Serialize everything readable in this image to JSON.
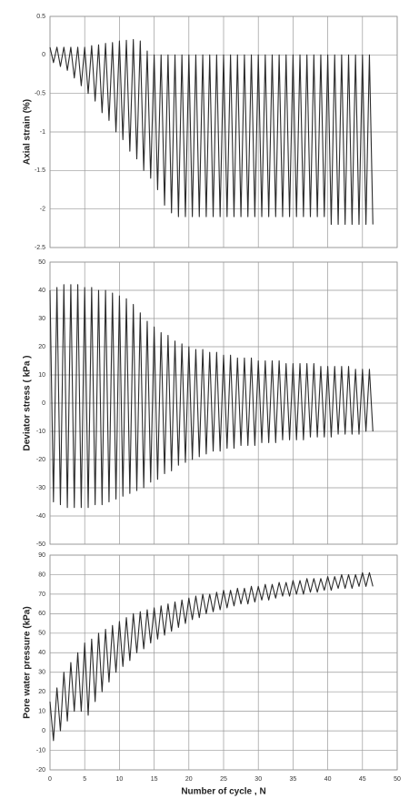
{
  "chart_data": [
    {
      "type": "line",
      "y_label": "Axial  strain (%)",
      "color": "#2b2b2b",
      "grid": true,
      "show_xtick_labels": false,
      "xlim": [
        0,
        50
      ],
      "xticks": [
        0,
        5,
        10,
        15,
        20,
        25,
        30,
        35,
        40,
        45,
        50
      ],
      "ylim": [
        -2.5,
        0.5
      ],
      "yticks": [
        -2.5,
        -2,
        -1.5,
        -1,
        -0.5,
        0,
        0.5
      ],
      "x": [
        0,
        0.5,
        1,
        1.5,
        2,
        2.5,
        3,
        3.5,
        4,
        4.5,
        5,
        5.5,
        6,
        6.5,
        7,
        7.5,
        8,
        8.5,
        9,
        9.5,
        10,
        10.5,
        11,
        11.5,
        12,
        12.5,
        13,
        13.5,
        14,
        14.5,
        15,
        15.5,
        16,
        16.5,
        17,
        17.5,
        18,
        18.5,
        19,
        19.5,
        20,
        20.5,
        21,
        21.5,
        22,
        22.5,
        23,
        23.5,
        24,
        24.5,
        25,
        25.5,
        26,
        26.5,
        27,
        27.5,
        28,
        28.5,
        29,
        29.5,
        30,
        30.5,
        31,
        31.5,
        32,
        32.5,
        33,
        33.5,
        34,
        34.5,
        35,
        35.5,
        36,
        36.5,
        37,
        37.5,
        38,
        38.5,
        39,
        39.5,
        40,
        40.5,
        41,
        41.5,
        42,
        42.5,
        43,
        43.5,
        44,
        44.5,
        45,
        45.5,
        46,
        46.5
      ],
      "values": [
        0.1,
        -0.1,
        0.1,
        -0.15,
        0.1,
        -0.2,
        0.1,
        -0.3,
        0.1,
        -0.4,
        0.1,
        -0.5,
        0.12,
        -0.6,
        0.13,
        -0.75,
        0.15,
        -0.85,
        0.16,
        -1,
        0.18,
        -1.1,
        0.19,
        -1.25,
        0.2,
        -1.35,
        0.18,
        -1.5,
        0.05,
        -1.6,
        0,
        -1.75,
        0,
        -1.95,
        0,
        -2.05,
        0,
        -2.1,
        0,
        -2.1,
        0,
        -2.1,
        0,
        -2.1,
        0,
        -2.1,
        0,
        -2.1,
        0,
        -2.1,
        0,
        -2.1,
        0,
        -2.1,
        0,
        -2.1,
        0,
        -2.1,
        0,
        -2.1,
        0,
        -2.1,
        0,
        -2.1,
        0,
        -2.1,
        0,
        -2.1,
        0,
        -2.1,
        0,
        -2.1,
        0,
        -2.1,
        0,
        -2.1,
        0,
        -2.1,
        0,
        -2.1,
        0,
        -2.2,
        0,
        -2.2,
        0,
        -2.2,
        0,
        -2.2,
        0,
        -2.2,
        0,
        -2.2,
        0,
        -2.2
      ]
    },
    {
      "type": "line",
      "y_label": "Deviator stress ( kPa )",
      "color": "#2b2b2b",
      "grid": true,
      "show_xtick_labels": false,
      "xlim": [
        0,
        50
      ],
      "xticks": [
        0,
        5,
        10,
        15,
        20,
        25,
        30,
        35,
        40,
        45,
        50
      ],
      "ylim": [
        -50,
        50
      ],
      "yticks": [
        -50,
        -40,
        -30,
        -20,
        -10,
        0,
        10,
        20,
        30,
        40,
        50
      ],
      "x": [
        0,
        0.5,
        1,
        1.5,
        2,
        2.5,
        3,
        3.5,
        4,
        4.5,
        5,
        5.5,
        6,
        6.5,
        7,
        7.5,
        8,
        8.5,
        9,
        9.5,
        10,
        10.5,
        11,
        11.5,
        12,
        12.5,
        13,
        13.5,
        14,
        14.5,
        15,
        15.5,
        16,
        16.5,
        17,
        17.5,
        18,
        18.5,
        19,
        19.5,
        20,
        20.5,
        21,
        21.5,
        22,
        22.5,
        23,
        23.5,
        24,
        24.5,
        25,
        25.5,
        26,
        26.5,
        27,
        27.5,
        28,
        28.5,
        29,
        29.5,
        30,
        30.5,
        31,
        31.5,
        32,
        32.5,
        33,
        33.5,
        34,
        34.5,
        35,
        35.5,
        36,
        36.5,
        37,
        37.5,
        38,
        38.5,
        39,
        39.5,
        40,
        40.5,
        41,
        41.5,
        42,
        42.5,
        43,
        43.5,
        44,
        44.5,
        45,
        45.5,
        46,
        46.5
      ],
      "values": [
        40,
        -35,
        41,
        -36,
        42,
        -37,
        42,
        -37,
        42,
        -37,
        41,
        -37,
        41,
        -36,
        40,
        -36,
        40,
        -35,
        39,
        -34,
        38,
        -33,
        37,
        -32,
        35,
        -31,
        32,
        -30,
        29,
        -28,
        27,
        -27,
        25,
        -25,
        24,
        -24,
        22,
        -22,
        21,
        -21,
        20,
        -20,
        19,
        -19,
        19,
        -18,
        18,
        -17,
        18,
        -17,
        17,
        -16,
        17,
        -16,
        16,
        -15,
        16,
        -15,
        16,
        -15,
        15,
        -14,
        15,
        -14,
        15,
        -14,
        15,
        -13,
        14,
        -13,
        14,
        -13,
        14,
        -13,
        14,
        -12,
        14,
        -12,
        13,
        -12,
        13,
        -12,
        13,
        -11,
        13,
        -11,
        13,
        -11,
        12,
        -11,
        12,
        -10,
        12,
        -10
      ]
    },
    {
      "type": "line",
      "y_label": "Pore water pressure (kPa)",
      "x_label": "Number of cycle , N",
      "color": "#2b2b2b",
      "grid": true,
      "show_xtick_labels": true,
      "xlim": [
        0,
        50
      ],
      "xticks": [
        0,
        5,
        10,
        15,
        20,
        25,
        30,
        35,
        40,
        45,
        50
      ],
      "ylim": [
        -20,
        90
      ],
      "yticks": [
        -20,
        -10,
        0,
        10,
        20,
        30,
        40,
        50,
        60,
        70,
        80,
        90
      ],
      "x": [
        0,
        0.5,
        1,
        1.5,
        2,
        2.5,
        3,
        3.5,
        4,
        4.5,
        5,
        5.5,
        6,
        6.5,
        7,
        7.5,
        8,
        8.5,
        9,
        9.5,
        10,
        10.5,
        11,
        11.5,
        12,
        12.5,
        13,
        13.5,
        14,
        14.5,
        15,
        15.5,
        16,
        16.5,
        17,
        17.5,
        18,
        18.5,
        19,
        19.5,
        20,
        20.5,
        21,
        21.5,
        22,
        22.5,
        23,
        23.5,
        24,
        24.5,
        25,
        25.5,
        26,
        26.5,
        27,
        27.5,
        28,
        28.5,
        29,
        29.5,
        30,
        30.5,
        31,
        31.5,
        32,
        32.5,
        33,
        33.5,
        34,
        34.5,
        35,
        35.5,
        36,
        36.5,
        37,
        37.5,
        38,
        38.5,
        39,
        39.5,
        40,
        40.5,
        41,
        41.5,
        42,
        42.5,
        43,
        43.5,
        44,
        44.5,
        45,
        45.5,
        46,
        46.5
      ],
      "values": [
        15,
        -5,
        22,
        0,
        30,
        5,
        35,
        10,
        40,
        10,
        45,
        8,
        47,
        15,
        50,
        20,
        52,
        25,
        54,
        30,
        56,
        33,
        58,
        36,
        60,
        40,
        61,
        42,
        62,
        45,
        63,
        47,
        64,
        49,
        65,
        51,
        66,
        53,
        67,
        55,
        68,
        57,
        69,
        58,
        70,
        60,
        70,
        61,
        71,
        62,
        72,
        63,
        72,
        64,
        73,
        65,
        73,
        65,
        74,
        66,
        74,
        67,
        75,
        67,
        75,
        68,
        76,
        69,
        76,
        69,
        77,
        70,
        77,
        70,
        78,
        71,
        78,
        71,
        78,
        72,
        79,
        72,
        79,
        73,
        80,
        73,
        80,
        73,
        80,
        74,
        81,
        74,
        81,
        74
      ]
    }
  ]
}
